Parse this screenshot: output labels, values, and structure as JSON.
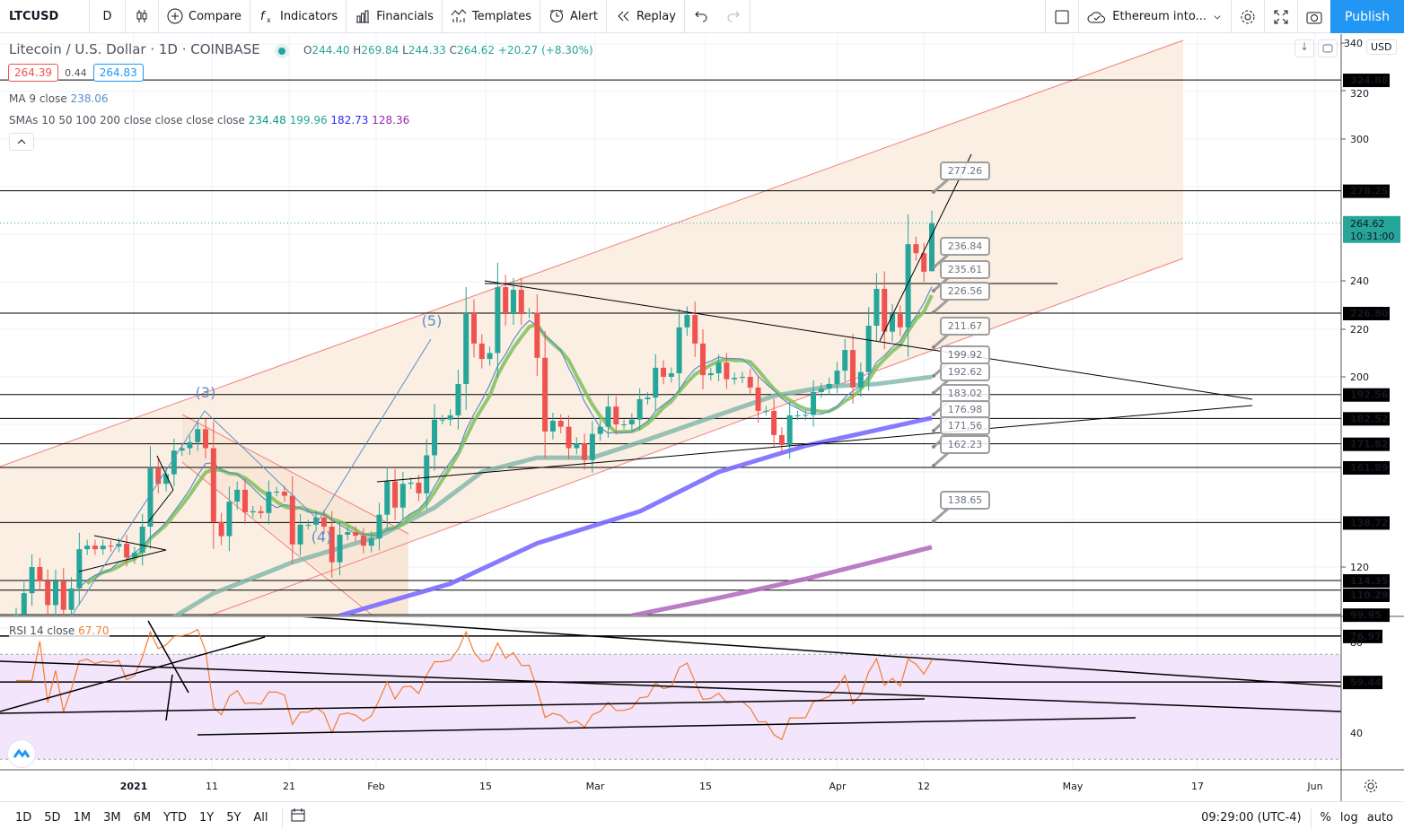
{
  "toolbar": {
    "symbol": "LTCUSD",
    "interval": "D",
    "compare": "Compare",
    "indicators": "Indicators",
    "financials": "Financials",
    "templates": "Templates",
    "alert": "Alert",
    "replay": "Replay",
    "layout_name": "Ethereum into...",
    "publish": "Publish",
    "icons": [
      "candles-icon",
      "plus-circle-icon",
      "fx-icon",
      "financials-icon",
      "templates-icon",
      "alarm-clock-icon",
      "replay-icon",
      "undo-icon",
      "redo-icon",
      "checkbox-icon",
      "cloud-icon",
      "chevron-down-icon",
      "gear-icon",
      "fullscreen-icon",
      "camera-icon"
    ]
  },
  "legend": {
    "title": "Litecoin / U.S. Dollar · 1D · COINBASE",
    "o_label": "O",
    "o": "244.40",
    "h_label": "H",
    "h": "269.84",
    "l_label": "L",
    "l": "244.33",
    "c_label": "C",
    "c": "264.62",
    "change": "+20.27 (+8.30%)",
    "bid": "264.39",
    "spread": "0.44",
    "ask": "264.83",
    "ma_label": "MA 9 close",
    "ma_value": "238.06",
    "smas_label": "SMAs 10 50 100 200 close close close close",
    "sma10": "234.48",
    "sma50": "199.96",
    "sma100": "182.73",
    "sma200": "128.36",
    "rsi_label": "RSI 14 close",
    "rsi_value": "67.70",
    "currency": "USD"
  },
  "colors": {
    "up": "#26a69a",
    "down": "#ef5350",
    "ma9": "#5b8fc9",
    "sma10": "#7fbf5a",
    "sma50": "#7fb5a8",
    "sma100": "#7b6cff",
    "sma200": "#b36fc0",
    "rsi": "#f57c30",
    "channel": "#fbeee2",
    "accent": "#2196f3"
  },
  "price_axis": {
    "ticks": [
      "340",
      "320",
      "300",
      "240",
      "220",
      "200",
      "120"
    ],
    "levels": [
      "324.88",
      "278.25",
      "226.80",
      "192.56",
      "182.52",
      "171.82",
      "161.89",
      "138.72",
      "114.35",
      "110.29",
      "99.95"
    ],
    "last_price": "264.62",
    "countdown": "10:31:00"
  },
  "rsi_axis": {
    "ticks": [
      "80",
      "40"
    ],
    "levels": [
      "76.97",
      "59.44"
    ]
  },
  "time_axis": [
    "2021",
    "11",
    "21",
    "Feb",
    "15",
    "Mar",
    "15",
    "Apr",
    "12",
    "May",
    "17",
    "Jun"
  ],
  "annotations": {
    "waves": [
      "(3)",
      "(4)",
      "(5)"
    ],
    "callouts": [
      "277.26",
      "236.84",
      "235.61",
      "226.56",
      "211.67",
      "199.92",
      "192.62",
      "183.02",
      "176.98",
      "171.56",
      "162.23",
      "138.65"
    ]
  },
  "bottombar": {
    "ranges": [
      "1D",
      "5D",
      "1M",
      "3M",
      "6M",
      "YTD",
      "1Y",
      "5Y",
      "All"
    ],
    "time": "09:29:00 (UTC-4)",
    "percent": "%",
    "log": "log",
    "auto": "auto"
  },
  "chart_data": {
    "type": "candlestick",
    "symbol": "LTCUSD",
    "interval": "1D",
    "last_bar": {
      "open": 244.4,
      "high": 269.84,
      "low": 244.33,
      "close": 264.62
    },
    "close": [
      100,
      109,
      120,
      114,
      104,
      114,
      102,
      111,
      127.5,
      129,
      127.5,
      129,
      128.6,
      129.8,
      124,
      126,
      137,
      161.5,
      155,
      159,
      169,
      170,
      172.5,
      178,
      170,
      139,
      133,
      147.5,
      152.5,
      143,
      143.5,
      142.7,
      151.7,
      151.7,
      150,
      129.5,
      137.8,
      137.8,
      140.8,
      137,
      122,
      133.6,
      134.7,
      133.2,
      129,
      132,
      142,
      156,
      145,
      155,
      155.5,
      151,
      167,
      182,
      182,
      183.8,
      197,
      226.8,
      214,
      207.5,
      210,
      237.7,
      226.8,
      236.6,
      226.8,
      227,
      208,
      177,
      181.5,
      179,
      170,
      172,
      165,
      176,
      179,
      187.5,
      180,
      180,
      182,
      190.6,
      191.3,
      203.8,
      200,
      201.5,
      220.8,
      226,
      214,
      200.7,
      201.5,
      206,
      199,
      199.6,
      200,
      195.5,
      185.7,
      185.7,
      175.5,
      171.3,
      183.8,
      183.8,
      184,
      193.6,
      195,
      197,
      202.6,
      211.3,
      195.5,
      202,
      221.5,
      237,
      219,
      226.4,
      220.8,
      255.8,
      252,
      244.2,
      264.62
    ],
    "sma50": [
      [
        20,
        99
      ],
      [
        25,
        109
      ],
      [
        32,
        118
      ],
      [
        35,
        122
      ],
      [
        46,
        133
      ],
      [
        53,
        145
      ],
      [
        59,
        160
      ],
      [
        66,
        166
      ],
      [
        73,
        166
      ],
      [
        80,
        173.6
      ],
      [
        89,
        184
      ],
      [
        96,
        192
      ],
      [
        103,
        196
      ],
      [
        109,
        197
      ],
      [
        116,
        199.96
      ]
    ],
    "sma100": [
      [
        41,
        99.6
      ],
      [
        55,
        113
      ],
      [
        66,
        130
      ],
      [
        79,
        143.4
      ],
      [
        89,
        160
      ],
      [
        100,
        171
      ],
      [
        116,
        182.73
      ]
    ],
    "sma200": [
      [
        78,
        99.6
      ],
      [
        89,
        107
      ],
      [
        100,
        115
      ],
      [
        116,
        128.36
      ]
    ],
    "yscale": "linear",
    "grid": true
  }
}
